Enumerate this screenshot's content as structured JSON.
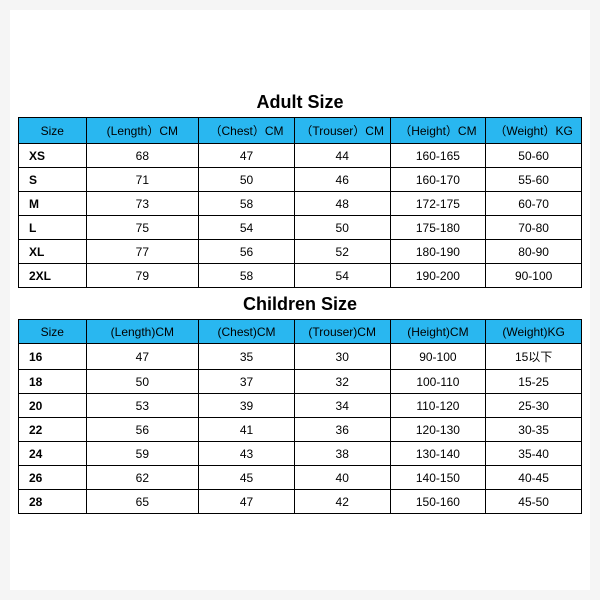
{
  "adult": {
    "title": "Adult Size",
    "header_bg": "#29b7f0",
    "columns": [
      "Size",
      "(Length）CM",
      "（Chest）CM",
      "（Trouser）CM",
      "（Height）CM",
      "（Weight）KG"
    ],
    "rows": [
      [
        "XS",
        "68",
        "47",
        "44",
        "160-165",
        "50-60"
      ],
      [
        "S",
        "71",
        "50",
        "46",
        "160-170",
        "55-60"
      ],
      [
        "M",
        "73",
        "58",
        "48",
        "172-175",
        "60-70"
      ],
      [
        "L",
        "75",
        "54",
        "50",
        "175-180",
        "70-80"
      ],
      [
        "XL",
        "77",
        "56",
        "52",
        "180-190",
        "80-90"
      ],
      [
        "2XL",
        "79",
        "58",
        "54",
        "190-200",
        "90-100"
      ]
    ]
  },
  "children": {
    "title": "Children Size",
    "header_bg": "#29b7f0",
    "columns": [
      "Size",
      "(Length)CM",
      "(Chest)CM",
      "(Trouser)CM",
      "(Height)CM",
      "(Weight)KG"
    ],
    "rows": [
      [
        "16",
        "47",
        "35",
        "30",
        "90-100",
        "15以下"
      ],
      [
        "18",
        "50",
        "37",
        "32",
        "100-110",
        "15-25"
      ],
      [
        "20",
        "53",
        "39",
        "34",
        "110-120",
        "25-30"
      ],
      [
        "22",
        "56",
        "41",
        "36",
        "120-130",
        "30-35"
      ],
      [
        "24",
        "59",
        "43",
        "38",
        "130-140",
        "35-40"
      ],
      [
        "26",
        "62",
        "45",
        "40",
        "140-150",
        "40-45"
      ],
      [
        "28",
        "65",
        "47",
        "42",
        "150-160",
        "45-50"
      ]
    ]
  }
}
